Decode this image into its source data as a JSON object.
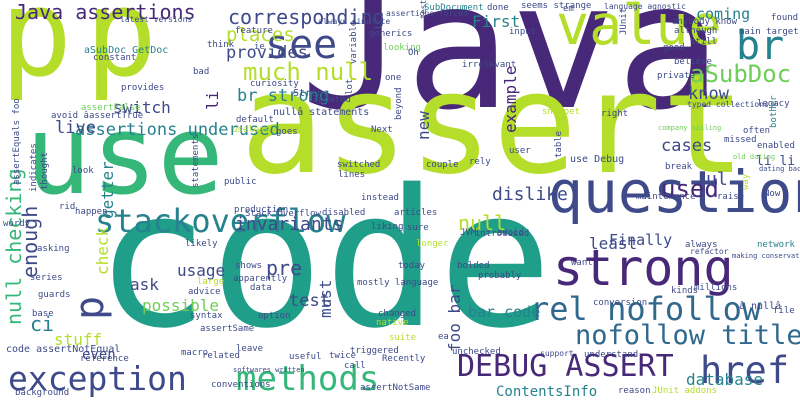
{
  "palette": {
    "dark_purple": "#482878",
    "indigo": "#3e4a89",
    "blue": "#31688e",
    "teal": "#26828e",
    "green_teal": "#1f9e89",
    "green": "#35b779",
    "lime": "#6ece58",
    "yellow_green": "#b5de2b",
    "yellow": "#fde725"
  },
  "words": [
    {
      "text": "Java",
      "color": "dark_purple"
    },
    {
      "text": "assert",
      "color": "yellow_green"
    },
    {
      "text": "code",
      "color": "green_teal"
    },
    {
      "text": "use",
      "color": "green"
    },
    {
      "text": "p",
      "color": "yellow_green"
    },
    {
      "text": "p",
      "color": "yellow_green"
    },
    {
      "text": "question",
      "color": "indigo"
    },
    {
      "text": "value",
      "color": "yellow_green"
    },
    {
      "text": "strong",
      "color": "dark_purple"
    },
    {
      "text": "see",
      "color": "indigo"
    },
    {
      "text": "exception",
      "color": "indigo"
    },
    {
      "text": "stackoverflow",
      "color": "teal"
    },
    {
      "text": "methods",
      "color": "green"
    },
    {
      "text": "DEBUG ASSERT",
      "color": "dark_purple"
    },
    {
      "text": "br",
      "color": "teal"
    },
    {
      "text": "rel nofollow",
      "color": "blue"
    },
    {
      "text": "nofollow title",
      "color": "blue"
    },
    {
      "text": "href",
      "color": "indigo"
    },
    {
      "text": "much null",
      "color": "yellow_green"
    },
    {
      "text": "Java assertions",
      "color": "dark_purple"
    },
    {
      "text": "corresponding",
      "color": "indigo"
    },
    {
      "text": "places",
      "color": "yellow_green"
    },
    {
      "text": "provides",
      "color": "indigo"
    },
    {
      "text": "br strong",
      "color": "teal"
    },
    {
      "text": "aSubDoc",
      "color": "lime"
    },
    {
      "text": "assertions underused",
      "color": "teal"
    },
    {
      "text": "switch",
      "color": "indigo"
    },
    {
      "text": "live",
      "color": "indigo"
    },
    {
      "text": "null checking",
      "color": "green"
    },
    {
      "text": "enough",
      "color": "indigo"
    },
    {
      "text": "p",
      "color": "indigo"
    },
    {
      "text": "null",
      "color": "yellow_green"
    },
    {
      "text": "used",
      "color": "dark_purple"
    },
    {
      "text": "invariants",
      "color": "indigo"
    },
    {
      "text": "dislike",
      "color": "indigo"
    },
    {
      "text": "cases",
      "color": "indigo"
    },
    {
      "text": "know",
      "color": "indigo"
    },
    {
      "text": "First",
      "color": "teal"
    },
    {
      "text": "coming",
      "color": "teal"
    },
    {
      "text": "bar code",
      "color": "teal"
    },
    {
      "text": "foo bar",
      "color": "indigo"
    },
    {
      "text": "test",
      "color": "indigo"
    },
    {
      "text": "possible",
      "color": "lime"
    },
    {
      "text": "usage",
      "color": "indigo"
    },
    {
      "text": "ask",
      "color": "indigo"
    },
    {
      "text": "pre",
      "color": "indigo"
    },
    {
      "text": "must",
      "color": "indigo"
    },
    {
      "text": "least",
      "color": "indigo"
    },
    {
      "text": "Finally",
      "color": "indigo"
    },
    {
      "text": "stuff",
      "color": "yellow_green"
    },
    {
      "text": "even",
      "color": "indigo"
    },
    {
      "text": "ContentsInfo",
      "color": "teal"
    },
    {
      "text": "database",
      "color": "teal"
    },
    {
      "text": "getter",
      "color": "teal"
    },
    {
      "text": "ul",
      "color": "indigo"
    },
    {
      "text": "li li",
      "color": "indigo"
    },
    {
      "text": "ci",
      "color": "teal"
    },
    {
      "text": "check",
      "color": "yellow_green"
    },
    {
      "text": "new",
      "color": "indigo"
    },
    {
      "text": "example",
      "color": "dark_purple"
    },
    {
      "text": "aSubDoc GetDoc",
      "color": "teal"
    },
    {
      "text": "use Debug",
      "color": "indigo"
    },
    {
      "text": "code assertNotEqual",
      "color": "indigo"
    },
    {
      "text": "assertEquals foo",
      "color": "indigo"
    },
    {
      "text": "nullâ statements",
      "color": "indigo"
    },
    {
      "text": "String",
      "color": "indigo"
    },
    {
      "text": "assertTrue",
      "color": "indigo"
    },
    {
      "text": "assertFalse",
      "color": "lime"
    },
    {
      "text": "avoid â",
      "color": "indigo"
    },
    {
      "text": "provides",
      "color": "indigo"
    },
    {
      "text": "Stack Overflow",
      "color": "indigo"
    },
    {
      "text": "macro",
      "color": "indigo"
    },
    {
      "text": "twice",
      "color": "indigo"
    },
    {
      "text": "Recently",
      "color": "indigo"
    },
    {
      "text": "assertNotSame",
      "color": "indigo"
    },
    {
      "text": "assertSame",
      "color": "indigo"
    },
    {
      "text": "network",
      "color": "teal"
    },
    {
      "text": "main target",
      "color": "indigo"
    },
    {
      "text": "legacy",
      "color": "indigo"
    },
    {
      "text": "enabled",
      "color": "indigo"
    },
    {
      "text": "often",
      "color": "indigo"
    },
    {
      "text": "found",
      "color": "indigo"
    },
    {
      "text": "still",
      "color": "indigo"
    },
    {
      "text": "believe",
      "color": "indigo"
    },
    {
      "text": "private",
      "color": "indigo"
    },
    {
      "text": "good",
      "color": "indigo"
    },
    {
      "text": "right",
      "color": "indigo"
    },
    {
      "text": "done",
      "color": "indigo"
    },
    {
      "text": "seems strange",
      "color": "indigo"
    },
    {
      "text": "SubDocument",
      "color": "teal"
    },
    {
      "text": "language agnostic",
      "color": "indigo"
    },
    {
      "text": "irrelevant",
      "color": "indigo"
    },
    {
      "text": "production",
      "color": "indigo"
    },
    {
      "text": "disabled",
      "color": "indigo"
    },
    {
      "text": "articles",
      "color": "indigo"
    },
    {
      "text": "instead",
      "color": "indigo"
    },
    {
      "text": "liking",
      "color": "indigo"
    },
    {
      "text": "sure",
      "color": "indigo"
    },
    {
      "text": "avoid",
      "color": "indigo"
    },
    {
      "text": "always",
      "color": "indigo"
    },
    {
      "text": "refactor",
      "color": "indigo"
    },
    {
      "text": "kinds",
      "color": "indigo"
    },
    {
      "text": "millions",
      "color": "indigo"
    },
    {
      "text": "conversion",
      "color": "indigo"
    },
    {
      "text": "probably",
      "color": "indigo"
    },
    {
      "text": "changed",
      "color": "indigo"
    },
    {
      "text": "today",
      "color": "indigo"
    },
    {
      "text": "unchecked",
      "color": "indigo"
    },
    {
      "text": "understand",
      "color": "indigo"
    },
    {
      "text": "reference",
      "color": "indigo"
    },
    {
      "text": "related",
      "color": "indigo"
    },
    {
      "text": "useful",
      "color": "indigo"
    },
    {
      "text": "call",
      "color": "indigo"
    },
    {
      "text": "leave",
      "color": "indigo"
    },
    {
      "text": "conventions",
      "color": "indigo"
    },
    {
      "text": "background",
      "color": "indigo"
    },
    {
      "text": "bolded",
      "color": "indigo"
    },
    {
      "text": "JVM",
      "color": "indigo"
    },
    {
      "text": "introduced",
      "color": "indigo"
    },
    {
      "text": "maintenance",
      "color": "indigo"
    },
    {
      "text": "break",
      "color": "indigo"
    },
    {
      "text": "raise",
      "color": "indigo"
    },
    {
      "text": "Now",
      "color": "indigo"
    },
    {
      "text": "file",
      "color": "indigo"
    },
    {
      "text": "couple",
      "color": "indigo"
    },
    {
      "text": "rely",
      "color": "indigo"
    },
    {
      "text": "public",
      "color": "indigo"
    },
    {
      "text": "statements",
      "color": "indigo"
    },
    {
      "text": "happen",
      "color": "indigo"
    },
    {
      "text": "wordy",
      "color": "indigo"
    },
    {
      "text": "asking",
      "color": "indigo"
    },
    {
      "text": "series",
      "color": "indigo"
    },
    {
      "text": "guards",
      "color": "indigo"
    },
    {
      "text": "base",
      "color": "indigo"
    },
    {
      "text": "look",
      "color": "indigo"
    },
    {
      "text": "shows",
      "color": "indigo"
    },
    {
      "text": "apparently",
      "color": "indigo"
    },
    {
      "text": "data",
      "color": "indigo"
    },
    {
      "text": "advice",
      "color": "indigo"
    },
    {
      "text": "option",
      "color": "indigo"
    },
    {
      "text": "syntax",
      "color": "indigo"
    },
    {
      "text": "likely",
      "color": "indigo"
    },
    {
      "text": "native",
      "color": "yellow_green"
    },
    {
      "text": "triggered",
      "color": "indigo"
    },
    {
      "text": "mostly language",
      "color": "indigo"
    },
    {
      "text": "bother",
      "color": "teal"
    },
    {
      "text": "curiosity",
      "color": "indigo"
    },
    {
      "text": "updated",
      "color": "indigo"
    },
    {
      "text": "default",
      "color": "indigo"
    },
    {
      "text": "useless",
      "color": "yellow_green"
    },
    {
      "text": "goes",
      "color": "indigo"
    },
    {
      "text": "Next",
      "color": "indigo"
    },
    {
      "text": "switched",
      "color": "indigo"
    },
    {
      "text": "lines",
      "color": "indigo"
    },
    {
      "text": "user",
      "color": "indigo"
    },
    {
      "text": "feature",
      "color": "indigo"
    },
    {
      "text": "think",
      "color": "indigo"
    },
    {
      "text": "bad",
      "color": "indigo"
    },
    {
      "text": "constant",
      "color": "indigo"
    },
    {
      "text": "latest versions",
      "color": "indigo"
    },
    {
      "text": "always simulate",
      "color": "indigo"
    },
    {
      "text": "generics",
      "color": "indigo"
    },
    {
      "text": "looking",
      "color": "lime"
    },
    {
      "text": "testing",
      "color": "indigo"
    },
    {
      "text": "input",
      "color": "indigo"
    },
    {
      "text": "anybody know",
      "color": "indigo"
    },
    {
      "text": "although",
      "color": "indigo"
    },
    {
      "text": "typed collections",
      "color": "indigo"
    },
    {
      "text": "company sailing",
      "color": "lime"
    },
    {
      "text": "dating back",
      "color": "indigo"
    },
    {
      "text": "old dating",
      "color": "lime"
    },
    {
      "text": "making conservative",
      "color": "indigo"
    },
    {
      "text": "softwares written",
      "color": "indigo"
    },
    {
      "text": "JUnit addons",
      "color": "yellow_green"
    },
    {
      "text": "reason",
      "color": "indigo"
    },
    {
      "text": "snippet",
      "color": "yellow_green"
    },
    {
      "text": "missed",
      "color": "indigo"
    },
    {
      "text": "ie",
      "color": "indigo"
    },
    {
      "text": "one",
      "color": "indigo"
    },
    {
      "text": "Oh",
      "color": "indigo"
    },
    {
      "text": "em",
      "color": "indigo"
    },
    {
      "text": "rid",
      "color": "indigo"
    },
    {
      "text": "ea",
      "color": "indigo"
    },
    {
      "text": "li",
      "color": "dark_purple"
    },
    {
      "text": "lot",
      "color": "indigo"
    },
    {
      "text": "suite",
      "color": "yellow_green"
    },
    {
      "text": "large",
      "color": "yellow_green"
    },
    {
      "text": "longer",
      "color": "yellow_green"
    },
    {
      "text": "â nullâ",
      "color": "indigo"
    },
    {
      "text": "way",
      "color": "yellow_green"
    },
    {
      "text": "want",
      "color": "indigo"
    },
    {
      "text": "indicates",
      "color": "indigo"
    },
    {
      "text": "thought",
      "color": "indigo"
    },
    {
      "text": "variable",
      "color": "indigo"
    },
    {
      "text": "table",
      "color": "indigo"
    },
    {
      "text": "beyond",
      "color": "indigo"
    },
    {
      "text": "JUnit",
      "color": "indigo"
    },
    {
      "text": "assertions forced",
      "color": "indigo"
    },
    {
      "text": "support",
      "color": "indigo"
    }
  ]
}
